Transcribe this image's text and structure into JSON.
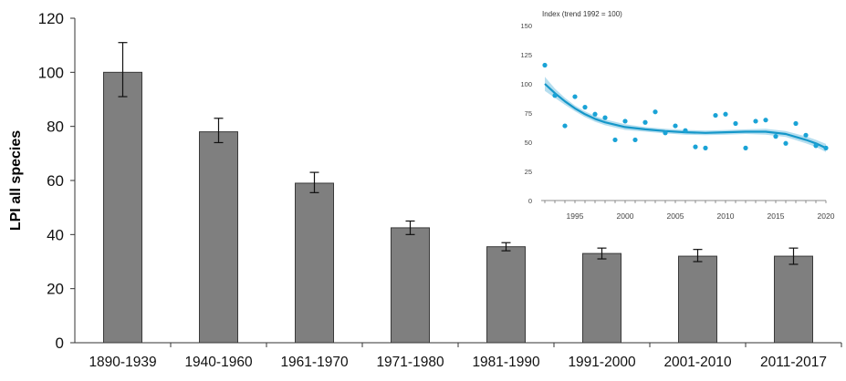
{
  "chart_data": [
    {
      "type": "bar",
      "ylabel": "LPI all species",
      "ylim": [
        0,
        120
      ],
      "yticks": [
        0,
        20,
        40,
        60,
        80,
        100,
        120
      ],
      "categories": [
        "1890-1939",
        "1940-1960",
        "1961-1970",
        "1971-1980",
        "1981-1990",
        "1991-2000",
        "2001-2010",
        "2011-2017"
      ],
      "values": [
        100,
        78,
        59,
        42.5,
        35.5,
        33,
        32,
        32
      ],
      "error_low": [
        91,
        74,
        55.5,
        40,
        34,
        31,
        30,
        29
      ],
      "error_high": [
        111,
        83,
        63,
        45,
        37,
        35,
        34.5,
        35
      ],
      "bar_color": "#7f7f7f",
      "grid": false
    },
    {
      "type": "scatter",
      "title": "Index (trend 1992 = 100)",
      "xlim": [
        1992,
        2020
      ],
      "ylim": [
        0,
        150
      ],
      "xticks": [
        1995,
        2000,
        2005,
        2010,
        2015,
        2020
      ],
      "yticks": [
        0,
        25,
        50,
        75,
        100,
        125,
        150
      ],
      "points": {
        "x": [
          1992,
          1993,
          1994,
          1995,
          1996,
          1997,
          1998,
          1999,
          2000,
          2001,
          2002,
          2003,
          2004,
          2005,
          2006,
          2007,
          2008,
          2009,
          2010,
          2011,
          2012,
          2013,
          2014,
          2015,
          2016,
          2017,
          2018,
          2019,
          2020
        ],
        "y": [
          116,
          90,
          64,
          89,
          80,
          74,
          71,
          52,
          68,
          52,
          67,
          76,
          58,
          64,
          60,
          46,
          45,
          73,
          74,
          66,
          45,
          68,
          69,
          55,
          49,
          66,
          56,
          47,
          45
        ]
      },
      "trend": {
        "x": [
          1992,
          1993,
          1994,
          1995,
          1996,
          1997,
          1998,
          2000,
          2002,
          2004,
          2006,
          2008,
          2010,
          2012,
          2014,
          2016,
          2018,
          2019,
          2020
        ],
        "y": [
          100,
          92,
          85,
          79,
          74,
          70,
          67,
          63,
          61,
          59.5,
          58.5,
          58,
          58.5,
          59,
          59,
          57,
          52,
          49,
          45
        ],
        "upper": [
          106,
          96,
          88,
          81.5,
          76.5,
          72.5,
          69.5,
          65.5,
          63,
          61.5,
          60.5,
          60,
          60.5,
          61,
          61.5,
          59.5,
          55,
          52,
          48.5
        ],
        "lower": [
          94,
          88,
          82,
          76.5,
          71.5,
          67.5,
          64.5,
          60.5,
          59,
          57.5,
          56.5,
          56,
          56.5,
          57,
          56.5,
          54.5,
          49,
          46,
          41.5
        ]
      },
      "point_color": "#1aa3d6",
      "line_color": "#1597c9",
      "band_color": "#a9d8ec",
      "grid": false
    }
  ]
}
